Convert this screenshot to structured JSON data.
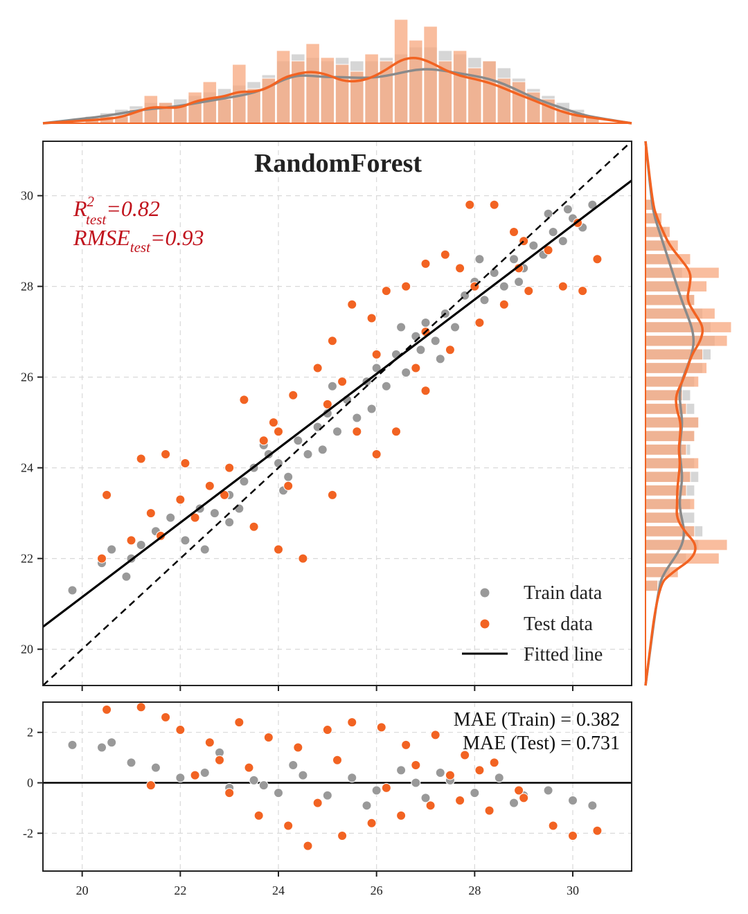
{
  "chart_data": {
    "type": "scatter",
    "title": "RandomForest",
    "annotations": {
      "r2_label": "R",
      "r2_sup": "2",
      "r2_sub": "test",
      "r2_value": "=0.82",
      "rmse_label": "RMSE",
      "rmse_sub": "test",
      "rmse_value": "=0.93",
      "mae_train": "MAE (Train) = 0.382",
      "mae_test": "MAE (Test) = 0.731"
    },
    "legend": {
      "position": "bottom-right",
      "entries": [
        "Train data",
        "Test data",
        "Fitted line"
      ]
    },
    "main_axes": {
      "xlim": [
        19.2,
        31.2
      ],
      "ylim": [
        19.2,
        31.2
      ],
      "xticks": [
        20,
        22,
        24,
        26,
        28,
        30
      ],
      "yticks": [
        20,
        22,
        24,
        26,
        28,
        30
      ],
      "grid": true
    },
    "residual_axes": {
      "ylim": [
        -3.5,
        3.2
      ],
      "yticks": [
        -2,
        0,
        2
      ],
      "ytick_labels": [
        "-2",
        "0",
        "2"
      ]
    },
    "identity_line": {
      "slope": 1,
      "intercept": 0
    },
    "fitted_line": {
      "slope": 0.82,
      "intercept": 4.75
    },
    "colors": {
      "train": "#999999",
      "test": "#f26322",
      "fitted": "#000000",
      "train_hist": "#d6d6d6",
      "test_hist": "#f7a77e",
      "r2_text": "#c0121c"
    },
    "train_points": [
      [
        19.8,
        21.3
      ],
      [
        20.4,
        21.9
      ],
      [
        20.6,
        22.2
      ],
      [
        20.9,
        21.6
      ],
      [
        21.2,
        22.3
      ],
      [
        21.5,
        22.6
      ],
      [
        21.8,
        22.9
      ],
      [
        22.1,
        22.4
      ],
      [
        22.4,
        23.1
      ],
      [
        22.7,
        23.0
      ],
      [
        23.0,
        23.4
      ],
      [
        23.3,
        23.7
      ],
      [
        23.5,
        24.0
      ],
      [
        23.8,
        24.3
      ],
      [
        24.0,
        24.1
      ],
      [
        24.2,
        23.8
      ],
      [
        24.4,
        24.6
      ],
      [
        24.6,
        24.3
      ],
      [
        24.8,
        24.9
      ],
      [
        25.0,
        25.2
      ],
      [
        25.2,
        24.8
      ],
      [
        25.4,
        25.5
      ],
      [
        25.6,
        25.1
      ],
      [
        25.8,
        25.9
      ],
      [
        26.0,
        26.2
      ],
      [
        26.2,
        25.8
      ],
      [
        26.4,
        26.5
      ],
      [
        26.6,
        26.1
      ],
      [
        26.8,
        26.9
      ],
      [
        27.0,
        27.2
      ],
      [
        27.2,
        26.8
      ],
      [
        27.4,
        27.4
      ],
      [
        27.6,
        27.1
      ],
      [
        27.8,
        27.8
      ],
      [
        28.0,
        28.1
      ],
      [
        28.2,
        27.7
      ],
      [
        28.4,
        28.3
      ],
      [
        28.6,
        28.0
      ],
      [
        28.8,
        28.6
      ],
      [
        29.0,
        28.4
      ],
      [
        29.2,
        28.9
      ],
      [
        29.4,
        28.7
      ],
      [
        29.6,
        29.2
      ],
      [
        29.8,
        29.0
      ],
      [
        30.0,
        29.5
      ],
      [
        30.2,
        29.3
      ],
      [
        30.4,
        29.8
      ],
      [
        22.0,
        23.3
      ],
      [
        22.5,
        22.2
      ],
      [
        23.0,
        22.8
      ],
      [
        23.7,
        24.5
      ],
      [
        24.1,
        23.5
      ],
      [
        25.1,
        25.8
      ],
      [
        25.9,
        25.3
      ],
      [
        26.5,
        27.1
      ],
      [
        27.3,
        26.4
      ],
      [
        28.1,
        28.6
      ],
      [
        28.9,
        28.1
      ],
      [
        29.5,
        29.6
      ],
      [
        21.0,
        22.0
      ],
      [
        23.2,
        23.1
      ],
      [
        24.9,
        24.4
      ],
      [
        26.9,
        26.6
      ],
      [
        29.9,
        29.7
      ]
    ],
    "test_points": [
      [
        20.5,
        23.4
      ],
      [
        21.2,
        24.2
      ],
      [
        21.7,
        24.3
      ],
      [
        22.1,
        24.1
      ],
      [
        22.6,
        23.6
      ],
      [
        23.3,
        25.5
      ],
      [
        23.9,
        25.0
      ],
      [
        24.3,
        25.6
      ],
      [
        24.8,
        26.2
      ],
      [
        25.1,
        26.8
      ],
      [
        25.5,
        27.6
      ],
      [
        25.9,
        27.3
      ],
      [
        26.2,
        27.9
      ],
      [
        26.6,
        28.0
      ],
      [
        27.0,
        28.5
      ],
      [
        27.4,
        28.7
      ],
      [
        27.9,
        29.8
      ],
      [
        28.4,
        29.8
      ],
      [
        28.9,
        28.4
      ],
      [
        29.5,
        28.8
      ],
      [
        30.1,
        29.4
      ],
      [
        30.5,
        28.6
      ],
      [
        20.4,
        22.0
      ],
      [
        21.0,
        22.4
      ],
      [
        21.6,
        22.5
      ],
      [
        22.3,
        22.9
      ],
      [
        22.9,
        23.4
      ],
      [
        23.5,
        22.7
      ],
      [
        24.0,
        22.2
      ],
      [
        24.5,
        22.0
      ],
      [
        25.1,
        23.4
      ],
      [
        25.6,
        24.8
      ],
      [
        26.0,
        24.3
      ],
      [
        26.4,
        24.8
      ],
      [
        27.0,
        25.7
      ],
      [
        27.5,
        26.6
      ],
      [
        28.1,
        27.2
      ],
      [
        28.6,
        27.6
      ],
      [
        29.1,
        27.9
      ],
      [
        29.8,
        28.0
      ],
      [
        30.2,
        27.9
      ],
      [
        22.0,
        23.3
      ],
      [
        23.0,
        24.0
      ],
      [
        24.0,
        24.8
      ],
      [
        25.0,
        25.4
      ],
      [
        26.0,
        26.5
      ],
      [
        27.0,
        27.0
      ],
      [
        28.0,
        28.0
      ],
      [
        29.0,
        29.0
      ],
      [
        26.8,
        26.2
      ],
      [
        25.3,
        25.9
      ],
      [
        24.2,
        23.6
      ],
      [
        27.7,
        28.4
      ],
      [
        28.8,
        29.2
      ],
      [
        21.4,
        23.0
      ],
      [
        23.7,
        24.6
      ]
    ],
    "residual_train": [
      [
        19.8,
        1.5
      ],
      [
        20.4,
        1.4
      ],
      [
        20.6,
        1.6
      ],
      [
        21.0,
        0.8
      ],
      [
        21.5,
        0.6
      ],
      [
        22.0,
        0.2
      ],
      [
        22.5,
        0.4
      ],
      [
        23.0,
        -0.2
      ],
      [
        23.5,
        0.1
      ],
      [
        24.0,
        -0.4
      ],
      [
        24.5,
        0.3
      ],
      [
        25.0,
        -0.5
      ],
      [
        25.5,
        0.2
      ],
      [
        26.0,
        -0.3
      ],
      [
        26.5,
        0.5
      ],
      [
        27.0,
        -0.6
      ],
      [
        27.5,
        0.1
      ],
      [
        28.0,
        -0.4
      ],
      [
        28.5,
        0.2
      ],
      [
        29.0,
        -0.5
      ],
      [
        29.5,
        -0.3
      ],
      [
        30.0,
        -0.7
      ],
      [
        30.4,
        -0.9
      ],
      [
        22.8,
        1.2
      ],
      [
        24.3,
        0.7
      ],
      [
        25.8,
        -0.9
      ],
      [
        27.3,
        0.4
      ],
      [
        28.8,
        -0.8
      ],
      [
        23.7,
        -0.1
      ],
      [
        26.8,
        0.0
      ]
    ],
    "residual_test": [
      [
        20.5,
        2.9
      ],
      [
        21.2,
        3.0
      ],
      [
        21.7,
        2.6
      ],
      [
        22.0,
        2.1
      ],
      [
        22.6,
        1.6
      ],
      [
        23.2,
        2.4
      ],
      [
        23.8,
        1.8
      ],
      [
        24.4,
        1.4
      ],
      [
        25.0,
        2.1
      ],
      [
        25.5,
        2.4
      ],
      [
        26.1,
        2.2
      ],
      [
        26.6,
        1.5
      ],
      [
        27.2,
        1.9
      ],
      [
        27.8,
        1.1
      ],
      [
        28.4,
        0.8
      ],
      [
        29.0,
        -0.6
      ],
      [
        29.6,
        -1.7
      ],
      [
        30.0,
        -2.1
      ],
      [
        30.5,
        -1.9
      ],
      [
        21.4,
        -0.1
      ],
      [
        22.3,
        0.3
      ],
      [
        23.0,
        -0.4
      ],
      [
        23.6,
        -1.3
      ],
      [
        24.2,
        -1.7
      ],
      [
        24.6,
        -2.5
      ],
      [
        25.3,
        -2.1
      ],
      [
        25.9,
        -1.6
      ],
      [
        26.5,
        -1.3
      ],
      [
        27.1,
        -0.9
      ],
      [
        27.7,
        -0.7
      ],
      [
        28.3,
        -1.1
      ],
      [
        28.9,
        -0.3
      ],
      [
        23.4,
        0.6
      ],
      [
        25.2,
        0.9
      ],
      [
        26.8,
        0.7
      ],
      [
        28.1,
        0.5
      ],
      [
        24.8,
        -0.8
      ],
      [
        26.2,
        -0.2
      ],
      [
        27.5,
        0.3
      ],
      [
        22.8,
        0.9
      ]
    ],
    "top_hist": {
      "bins": [
        20.2,
        20.5,
        20.8,
        21.1,
        21.4,
        21.7,
        22.0,
        22.3,
        22.6,
        22.9,
        23.2,
        23.5,
        23.8,
        24.1,
        24.4,
        24.7,
        25.0,
        25.3,
        25.6,
        25.9,
        26.2,
        26.5,
        26.8,
        27.1,
        27.4,
        27.7,
        28.0,
        28.3,
        28.6,
        28.9,
        29.2,
        29.5,
        29.8,
        30.1,
        30.4
      ],
      "train": [
        2,
        3,
        4,
        5,
        6,
        6,
        7,
        8,
        9,
        10,
        11,
        12,
        14,
        18,
        20,
        19,
        18,
        19,
        18,
        18,
        19,
        20,
        22,
        22,
        21,
        20,
        19,
        18,
        16,
        13,
        10,
        8,
        6,
        4,
        2
      ],
      "test": [
        1,
        2,
        2,
        4,
        8,
        6,
        5,
        9,
        12,
        7,
        17,
        10,
        13,
        21,
        18,
        23,
        19,
        17,
        15,
        20,
        18,
        30,
        24,
        28,
        18,
        21,
        16,
        18,
        13,
        12,
        9,
        7,
        4,
        3,
        2
      ]
    },
    "right_hist": {
      "bins": [
        21.4,
        21.7,
        22.0,
        22.3,
        22.6,
        22.9,
        23.2,
        23.5,
        23.8,
        24.1,
        24.4,
        24.7,
        25.0,
        25.3,
        25.6,
        25.9,
        26.2,
        26.5,
        26.8,
        27.1,
        27.4,
        27.7,
        28.0,
        28.3,
        28.6,
        28.9,
        29.2,
        29.5,
        29.8
      ],
      "train": [
        4,
        6,
        10,
        13,
        14,
        12,
        11,
        12,
        13,
        12,
        11,
        12,
        13,
        12,
        11,
        12,
        14,
        16,
        17,
        16,
        14,
        12,
        11,
        9,
        8,
        6,
        5,
        3,
        2
      ],
      "test": [
        3,
        8,
        18,
        20,
        12,
        9,
        12,
        10,
        11,
        13,
        10,
        12,
        13,
        10,
        9,
        13,
        15,
        14,
        20,
        21,
        17,
        12,
        15,
        18,
        11,
        8,
        6,
        4,
        2
      ]
    }
  }
}
